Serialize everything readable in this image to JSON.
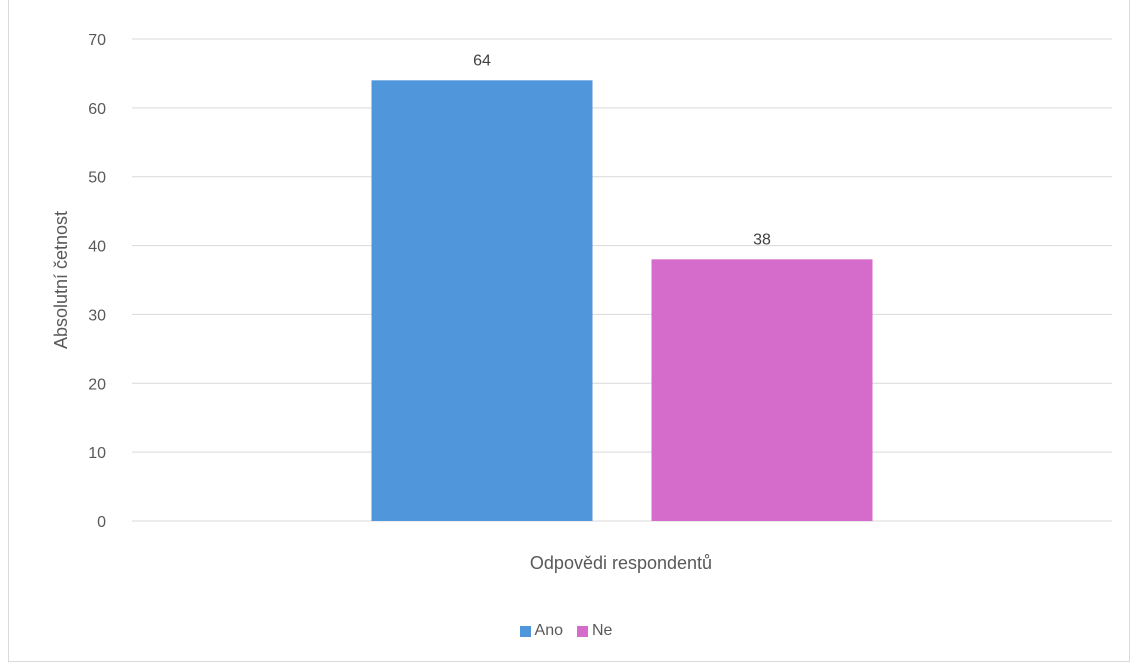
{
  "chart_data": {
    "type": "bar",
    "categories": [
      "Odpovědi respondentů"
    ],
    "xlabel": "Odpovědi respondentů",
    "ylabel": "Absolutní četnost",
    "ylim": [
      0,
      70
    ],
    "ytick_step": 10,
    "grid": true,
    "legend": "bottom",
    "series": [
      {
        "name": "Ano",
        "values": [
          64
        ],
        "color": "#4f96da"
      },
      {
        "name": "Ne",
        "values": [
          38
        ],
        "color": "#d56bcb"
      }
    ]
  }
}
